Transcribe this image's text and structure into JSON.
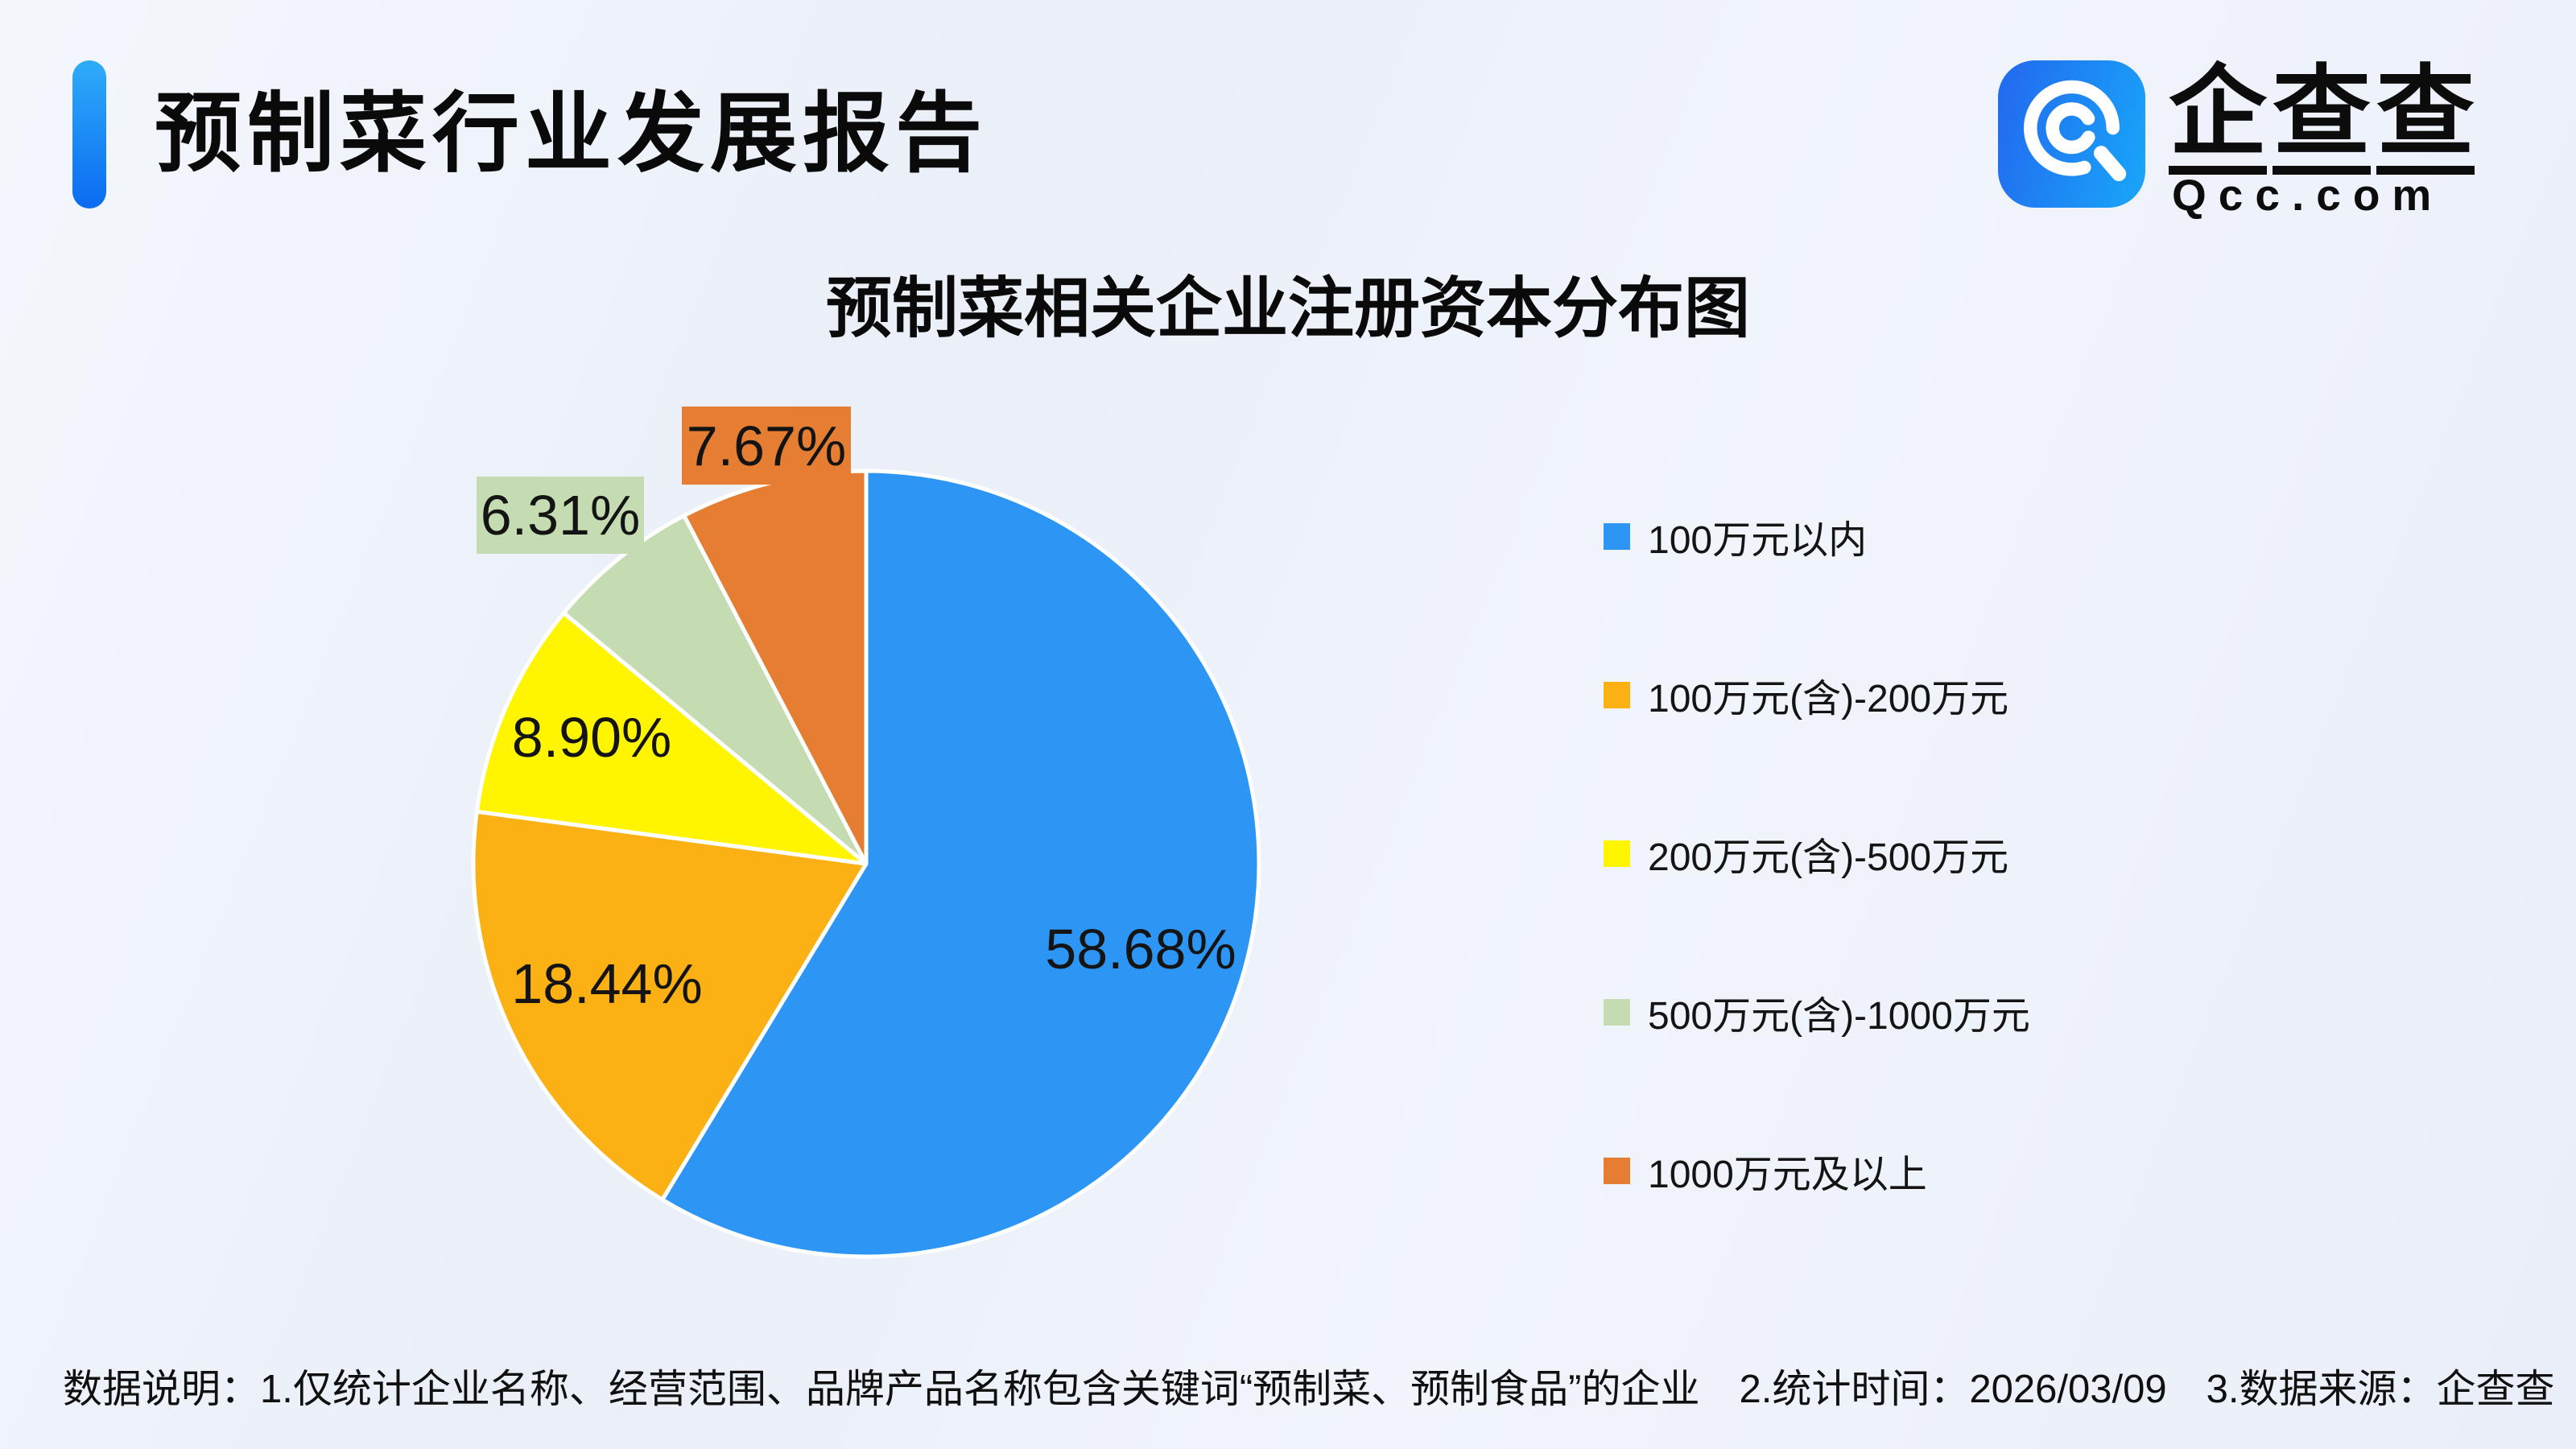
{
  "header": {
    "title": "预制菜行业发展报告",
    "accent_color_top": "#2FACFA",
    "accent_color_bottom": "#0B6BF1"
  },
  "brand": {
    "name": "企查查",
    "domain": "Qcc.com",
    "icon": "qcc-magnifier-icon",
    "icon_gradient_start": "#2368EF",
    "icon_gradient_end": "#18A7F9"
  },
  "chart_data": {
    "type": "pie",
    "title": "预制菜相关企业注册资本分布图",
    "legend_position": "right",
    "start_angle": "top",
    "direction": "clockwise",
    "slices": [
      {
        "label": "100万元以内",
        "value": 58.68,
        "display": "58.68%",
        "color": "#2D96F4",
        "label_style": "plain"
      },
      {
        "label": "100万元(含)-200万元",
        "value": 18.44,
        "display": "18.44%",
        "color": "#FBB013",
        "label_style": "plain"
      },
      {
        "label": "200万元(含)-500万元",
        "value": 8.9,
        "display": "8.90%",
        "color": "#FFF500",
        "label_style": "plain"
      },
      {
        "label": "500万元(含)-1000万元",
        "value": 6.31,
        "display": "6.31%",
        "color": "#C5DCB3",
        "label_style": "boxed"
      },
      {
        "label": "1000万元及以上",
        "value": 7.67,
        "display": "7.67%",
        "color": "#E57E33",
        "label_style": "boxed"
      }
    ]
  },
  "footer": {
    "note": "数据说明：1.仅统计企业名称、经营范围、品牌产品名称包含关键词“预制菜、预制食品”的企业　2.统计时间：2026/03/09　3.数据来源：企查查"
  }
}
